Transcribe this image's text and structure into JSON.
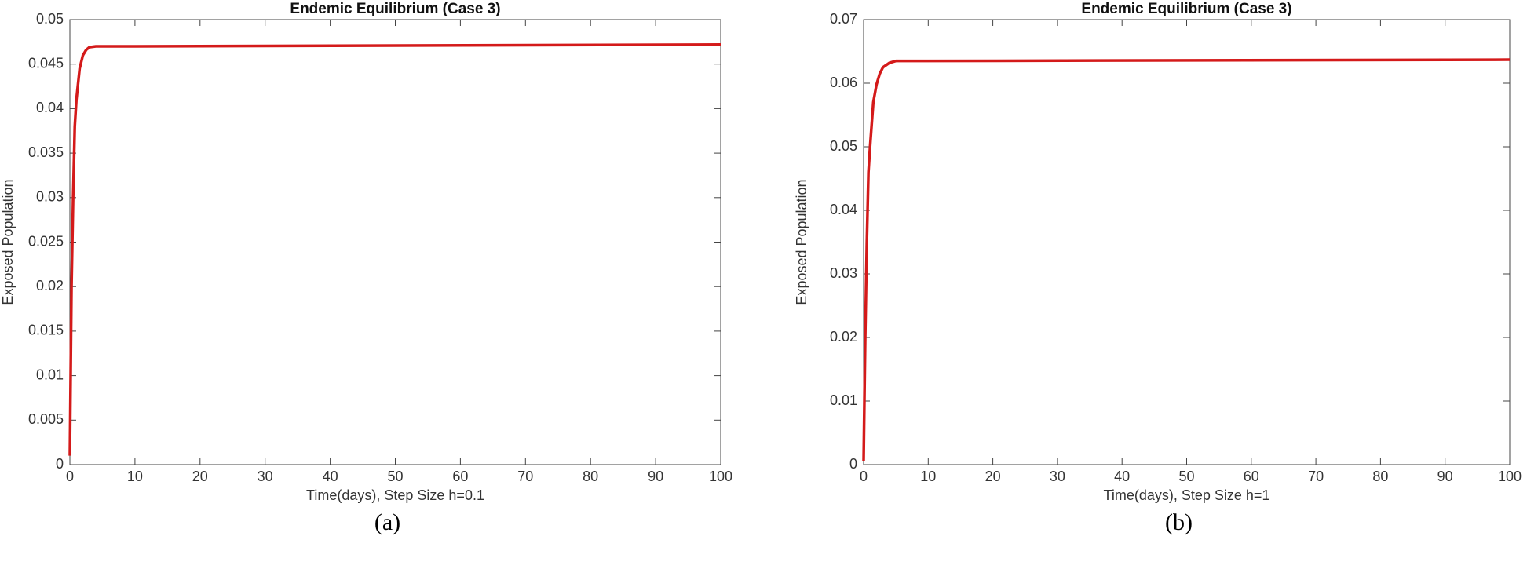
{
  "chart_data": [
    {
      "type": "line",
      "title": "Endemic Equilibrium (Case 3)",
      "xlabel": "Time(days), Step Size h=0.1",
      "ylabel": "Exposed Population",
      "caption": "(a)",
      "series": [
        {
          "color": "#d41a1a",
          "x": [
            0,
            0.25,
            0.5,
            0.75,
            1,
            1.5,
            2,
            2.5,
            3,
            4,
            10,
            100
          ],
          "values": [
            0.001,
            0.02,
            0.03,
            0.038,
            0.041,
            0.0445,
            0.046,
            0.0466,
            0.0469,
            0.047,
            0.047,
            0.0472
          ]
        }
      ],
      "xlim": [
        0,
        100
      ],
      "xticks": [
        0,
        10,
        20,
        30,
        40,
        50,
        60,
        70,
        80,
        90,
        100
      ],
      "ylim": [
        0,
        0.05
      ],
      "yticks": [
        0,
        0.005,
        0.01,
        0.015,
        0.02,
        0.025,
        0.03,
        0.035,
        0.04,
        0.045,
        0.05
      ]
    },
    {
      "type": "line",
      "title": "Endemic Equilibrium (Case 3)",
      "xlabel": "Time(days), Step Size h=1",
      "ylabel": "Exposed Population",
      "caption": "(b)",
      "series": [
        {
          "color": "#d41a1a",
          "x": [
            0,
            0.25,
            0.5,
            0.75,
            1,
            1.5,
            2,
            2.5,
            3,
            4,
            5,
            10,
            100
          ],
          "values": [
            0.0005,
            0.02,
            0.035,
            0.046,
            0.05,
            0.057,
            0.0598,
            0.0615,
            0.0625,
            0.0632,
            0.0635,
            0.0635,
            0.0637
          ]
        }
      ],
      "xlim": [
        0,
        100
      ],
      "xticks": [
        0,
        10,
        20,
        30,
        40,
        50,
        60,
        70,
        80,
        90,
        100
      ],
      "ylim": [
        0,
        0.07
      ],
      "yticks": [
        0,
        0.01,
        0.02,
        0.03,
        0.04,
        0.05,
        0.06,
        0.07
      ]
    }
  ]
}
